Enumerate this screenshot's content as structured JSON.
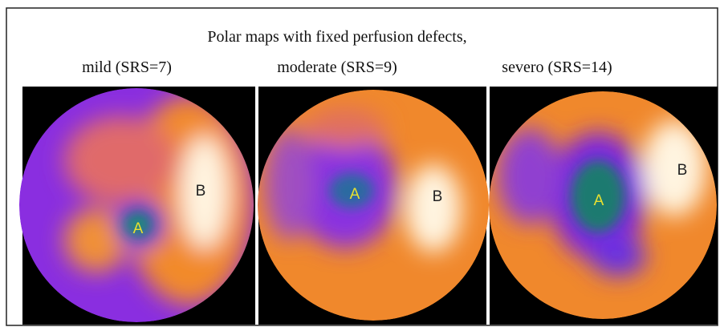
{
  "figure": {
    "title": "Polar maps with fixed perfusion defects,",
    "panels": [
      {
        "label": "mild (SRS=7)",
        "marker_a": "A",
        "marker_b": "B"
      },
      {
        "label": "moderate (SRS=9)",
        "marker_a": "A",
        "marker_b": "B"
      },
      {
        "label": "severo (SRS=14)",
        "marker_a": "A",
        "marker_b": "B"
      }
    ]
  }
}
